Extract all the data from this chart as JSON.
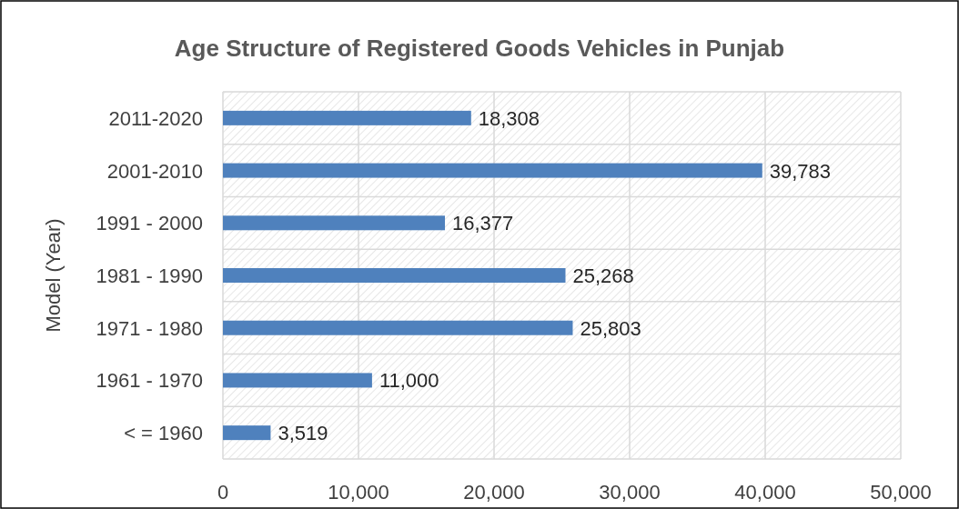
{
  "chart_data": {
    "type": "bar",
    "orientation": "horizontal",
    "title": "Age Structure of Registered Goods Vehicles in Punjab",
    "ylabel": "Model (Year)",
    "categories": [
      "2011-2020",
      "2001-2010",
      "1991 - 2000",
      "1981 - 1990",
      "1971 - 1980",
      "1961 - 1970",
      "< = 1960"
    ],
    "values": [
      18308,
      39783,
      16377,
      25268,
      25803,
      11000,
      3519
    ],
    "color": "#4f81bd",
    "xlim": [
      0,
      50000
    ],
    "xticks": [
      0,
      {
        "value": 10000,
        "label": "10,000"
      },
      {
        "value": 20000,
        "label": "20,000"
      },
      {
        "value": 30000,
        "label": "30,000"
      },
      {
        "value": 40000,
        "label": "40,000"
      },
      {
        "value": 50000,
        "label": "50,000"
      }
    ],
    "value_labels": [
      "18,308",
      "39,783",
      "16,377",
      "25,268",
      "25,803",
      "11,000",
      "3,519"
    ],
    "grid": true
  }
}
